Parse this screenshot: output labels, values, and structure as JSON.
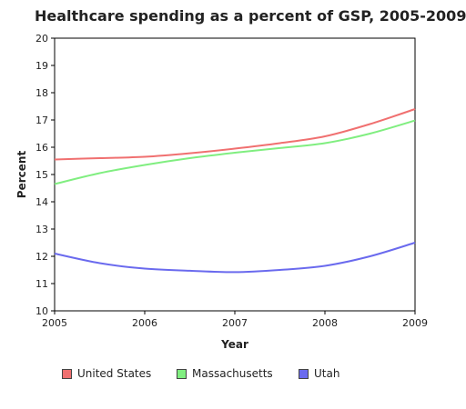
{
  "chart_data": {
    "type": "line",
    "title": "Healthcare spending as a percent of GSP, 2005-2009",
    "xlabel": "Year",
    "ylabel": "Percent",
    "x_ticks": [
      "2005",
      "2006",
      "2007",
      "2008",
      "2009"
    ],
    "y_ticks": [
      "10",
      "11",
      "12",
      "13",
      "14",
      "15",
      "16",
      "17",
      "18",
      "19",
      "20"
    ],
    "xlim": [
      2005,
      2009
    ],
    "ylim": [
      10,
      20
    ],
    "grid": false,
    "legend_position": "bottom",
    "series": [
      {
        "name": "United States",
        "color": "#f07070",
        "x": [
          2005,
          2005.5,
          2006,
          2006.5,
          2007,
          2007.5,
          2008,
          2008.5,
          2009
        ],
        "values": [
          15.55,
          15.6,
          15.65,
          15.78,
          15.95,
          16.15,
          16.4,
          16.85,
          17.4
        ]
      },
      {
        "name": "Massachusetts",
        "color": "#80ee80",
        "x": [
          2005,
          2005.5,
          2006,
          2006.5,
          2007,
          2007.5,
          2008,
          2008.5,
          2009
        ],
        "values": [
          14.65,
          15.05,
          15.35,
          15.6,
          15.8,
          15.97,
          16.15,
          16.5,
          16.98
        ]
      },
      {
        "name": "Utah",
        "color": "#6a6aee",
        "x": [
          2005,
          2005.5,
          2006,
          2006.5,
          2007,
          2007.5,
          2008,
          2008.5,
          2009
        ],
        "values": [
          12.1,
          11.75,
          11.55,
          11.47,
          11.42,
          11.5,
          11.65,
          12.0,
          12.5
        ]
      }
    ]
  }
}
